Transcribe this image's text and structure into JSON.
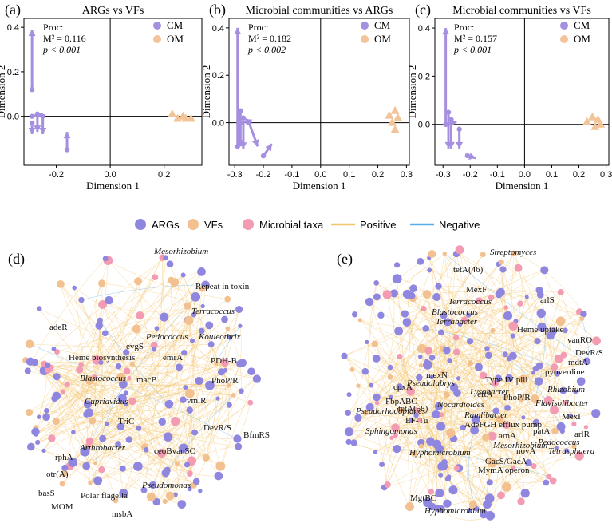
{
  "colors": {
    "CM": "#a48fe0",
    "OM": "#f2c498",
    "ARGs": "#8f86e0",
    "VFs": "#f2c18f",
    "Microbial taxa": "#f29bb2",
    "Positive": "#f5c56e",
    "Negative": "#5aaee8"
  },
  "chart_data": [
    {
      "type": "scatter",
      "panel": "(a)",
      "title": "ARGs vs VFs",
      "xlabel": "Dimension 1",
      "ylabel": "Dimension 2",
      "xlim": [
        -0.32,
        0.34
      ],
      "ylim": [
        -0.22,
        0.44
      ],
      "xticks": [
        -0.2,
        0.0,
        0.2
      ],
      "xtick_labels": [
        "-0.2",
        "0.0",
        "0.2"
      ],
      "yticks": [
        0.0,
        0.2,
        0.4
      ],
      "ytick_labels": [
        "0.0",
        "0.2",
        "0.4"
      ],
      "stats": {
        "line1": "Proc:",
        "line2": "M² = 0.116",
        "line3": "p < 0.001"
      },
      "legend": [
        "CM",
        "OM"
      ],
      "series": [
        {
          "name": "CM",
          "arrows": [
            {
              "from": [
                -0.29,
                0.12
              ],
              "to": [
                -0.29,
                0.39
              ]
            },
            {
              "from": [
                -0.29,
                -0.03
              ],
              "to": [
                -0.29,
                -0.08
              ]
            },
            {
              "from": [
                -0.27,
                0.01
              ],
              "to": [
                -0.27,
                -0.07
              ]
            },
            {
              "from": [
                -0.25,
                0.0
              ],
              "to": [
                -0.25,
                -0.08
              ]
            },
            {
              "from": [
                -0.16,
                -0.15
              ],
              "to": [
                -0.16,
                -0.07
              ]
            },
            {
              "from": [
                -0.29,
                0.0
              ],
              "to": [
                -0.25,
                0.01
              ]
            }
          ]
        },
        {
          "name": "OM",
          "points": [
            [
              0.23,
              0.01
            ],
            [
              0.25,
              -0.01
            ],
            [
              0.27,
              0.0
            ],
            [
              0.28,
              -0.01
            ],
            [
              0.3,
              -0.01
            ]
          ]
        }
      ]
    },
    {
      "type": "scatter",
      "panel": "(b)",
      "title": "Microbial communities vs ARGs",
      "xlabel": "Dimension 1",
      "ylabel": "Dimension 2",
      "xlim": [
        -0.32,
        0.31
      ],
      "ylim": [
        -0.18,
        0.44
      ],
      "xticks": [
        -0.3,
        -0.2,
        -0.1,
        0.0,
        0.1,
        0.2,
        0.3
      ],
      "xtick_labels": [
        "-0.3",
        "-0.2",
        "-0.1",
        "0.0",
        "0.1",
        "0.2",
        "0.3"
      ],
      "yticks": [
        0.0,
        0.2,
        0.4
      ],
      "ytick_labels": [
        "0.0",
        "0.2",
        "0.4"
      ],
      "stats": {
        "line1": "Proc:",
        "line2": "M² = 0.182",
        "line3": "p < 0.002"
      },
      "legend": [
        "CM",
        "OM"
      ],
      "series": [
        {
          "name": "CM",
          "arrows": [
            {
              "from": [
                -0.29,
                -0.1
              ],
              "to": [
                -0.29,
                0.4
              ]
            },
            {
              "from": [
                -0.28,
                0.05
              ],
              "to": [
                -0.28,
                -0.1
              ]
            },
            {
              "from": [
                -0.27,
                0.02
              ],
              "to": [
                -0.27,
                -0.11
              ]
            },
            {
              "from": [
                -0.25,
                0.0
              ],
              "to": [
                -0.22,
                -0.1
              ]
            },
            {
              "from": [
                -0.2,
                -0.14
              ],
              "to": [
                -0.17,
                -0.09
              ]
            },
            {
              "from": [
                -0.28,
                0.0
              ],
              "to": [
                -0.24,
                0.01
              ]
            }
          ]
        },
        {
          "name": "OM",
          "points": [
            [
              0.24,
              0.03
            ],
            [
              0.25,
              0.0
            ],
            [
              0.26,
              -0.03
            ],
            [
              0.27,
              0.02
            ],
            [
              0.26,
              0.05
            ]
          ]
        }
      ]
    },
    {
      "type": "scatter",
      "panel": "(c)",
      "title": "Microbial communities vs VFs",
      "xlabel": "Dimension 1",
      "ylabel": "Dimension 2",
      "xlim": [
        -0.33,
        0.31
      ],
      "ylim": [
        -0.17,
        0.44
      ],
      "xticks": [
        -0.3,
        -0.2,
        -0.1,
        0.0,
        0.1,
        0.2,
        0.3
      ],
      "xtick_labels": [
        "-0.3",
        "-0.2",
        "-0.1",
        "0.0",
        "0.1",
        "0.2",
        "0.3"
      ],
      "yticks": [
        0.0,
        0.2,
        0.4
      ],
      "ytick_labels": [
        "0.0",
        "0.2",
        "0.4"
      ],
      "stats": {
        "line1": "Proc:",
        "line2": "M² = 0.157",
        "line3": "p < 0.001"
      },
      "legend": [
        "CM",
        "OM"
      ],
      "series": [
        {
          "name": "CM",
          "arrows": [
            {
              "from": [
                -0.29,
                0.0
              ],
              "to": [
                -0.29,
                0.4
              ]
            },
            {
              "from": [
                -0.28,
                0.05
              ],
              "to": [
                -0.28,
                -0.1
              ]
            },
            {
              "from": [
                -0.27,
                0.02
              ],
              "to": [
                -0.27,
                -0.1
              ]
            },
            {
              "from": [
                -0.24,
                -0.02
              ],
              "to": [
                -0.24,
                -0.1
              ]
            },
            {
              "from": [
                -0.21,
                -0.13
              ],
              "to": [
                -0.18,
                -0.14
              ]
            },
            {
              "from": [
                -0.29,
                0.0
              ],
              "to": [
                -0.25,
                0.01
              ]
            }
          ]
        },
        {
          "name": "OM",
          "points": [
            [
              0.23,
              0.01
            ],
            [
              0.25,
              0.03
            ],
            [
              0.26,
              -0.01
            ],
            [
              0.27,
              0.02
            ],
            [
              0.28,
              0.0
            ]
          ]
        }
      ]
    }
  ],
  "network_legend": [
    "ARGs",
    "VFs",
    "Microbial taxa",
    "Positive",
    "Negative"
  ],
  "network_d": {
    "panel": "(d)",
    "labels": [
      {
        "text": "Mesorhizobium",
        "italic": true
      },
      {
        "text": "Repeat in toxin",
        "italic": false
      },
      {
        "text": "Terracoccus",
        "italic": true
      },
      {
        "text": "adeR",
        "italic": false
      },
      {
        "text": "Pedococcus",
        "italic": true
      },
      {
        "text": "Kouleothrix",
        "italic": true
      },
      {
        "text": "evgS",
        "italic": false
      },
      {
        "text": "Heme biosynthesis",
        "italic": false
      },
      {
        "text": "emrA",
        "italic": false
      },
      {
        "text": "PDH-B",
        "italic": false
      },
      {
        "text": "Blastococcus",
        "italic": true
      },
      {
        "text": "macB",
        "italic": false
      },
      {
        "text": "Cupriavidus",
        "italic": true
      },
      {
        "text": "PhoP/R",
        "italic": false
      },
      {
        "text": "vmlR",
        "italic": false
      },
      {
        "text": "TriC",
        "italic": false
      },
      {
        "text": "DevR/S",
        "italic": false
      },
      {
        "text": "BfmRS",
        "italic": false
      },
      {
        "text": "Arthrobacter",
        "italic": true
      },
      {
        "text": "ceoBvanSO",
        "italic": false
      },
      {
        "text": "rphA",
        "italic": false
      },
      {
        "text": "otr(A)",
        "italic": false
      },
      {
        "text": "Pseudomonas",
        "italic": true
      },
      {
        "text": "basS",
        "italic": false
      },
      {
        "text": "Polar flagella",
        "italic": false
      },
      {
        "text": "MOM",
        "italic": false
      },
      {
        "text": "msbA",
        "italic": false
      }
    ]
  },
  "network_e": {
    "panel": "(e)",
    "labels": [
      {
        "text": "Streptomyces",
        "italic": true
      },
      {
        "text": "tetA(46)",
        "italic": false
      },
      {
        "text": "MexF",
        "italic": false
      },
      {
        "text": "Terracoccus",
        "italic": true
      },
      {
        "text": "Blastococcus",
        "italic": true
      },
      {
        "text": "arlS",
        "italic": false
      },
      {
        "text": "Terrabacter",
        "italic": true
      },
      {
        "text": "Heme uptake",
        "italic": false
      },
      {
        "text": "vanRO",
        "italic": false
      },
      {
        "text": "DevR/S",
        "italic": false
      },
      {
        "text": "mdtA",
        "italic": false
      },
      {
        "text": "pyoverdine",
        "italic": false
      },
      {
        "text": "mexN",
        "italic": false
      },
      {
        "text": "cpxA",
        "italic": false
      },
      {
        "text": "Pseudolabrys",
        "italic": true
      },
      {
        "text": "Hyphomicrobium",
        "italic": true
      },
      {
        "text": "Rhizobium",
        "italic": true
      },
      {
        "text": "Type IV pili",
        "italic": false
      },
      {
        "text": "Lysobacter",
        "italic": true
      },
      {
        "text": "Flavisolibacter",
        "italic": true
      },
      {
        "text": "eftA",
        "italic": false
      },
      {
        "text": "FbpABC",
        "italic": false
      },
      {
        "text": "Nocardioides",
        "italic": true
      },
      {
        "text": "PhoP/R",
        "italic": false
      },
      {
        "text": "MexI",
        "italic": false
      },
      {
        "text": "tetA(58)",
        "italic": false
      },
      {
        "text": "Pseudorhodoplanes",
        "italic": true
      },
      {
        "text": "EF-Tu",
        "italic": false
      },
      {
        "text": "Ramlibacter",
        "italic": true
      },
      {
        "text": "AdeFGH efflux pump",
        "italic": false
      },
      {
        "text": "arlR",
        "italic": false
      },
      {
        "text": "Sphingomonas",
        "italic": true
      },
      {
        "text": "arnA",
        "italic": false
      },
      {
        "text": "patA",
        "italic": false
      },
      {
        "text": "Pedococcus",
        "italic": true
      },
      {
        "text": "Mesorhizobium",
        "italic": true
      },
      {
        "text": "Tetrasphaera",
        "italic": true
      },
      {
        "text": "novA",
        "italic": false
      },
      {
        "text": "Hyphomicrobium",
        "italic": true
      },
      {
        "text": "GacS/GacA",
        "italic": false
      },
      {
        "text": "MymA operon",
        "italic": false
      },
      {
        "text": "MgtBC",
        "italic": false
      }
    ]
  }
}
